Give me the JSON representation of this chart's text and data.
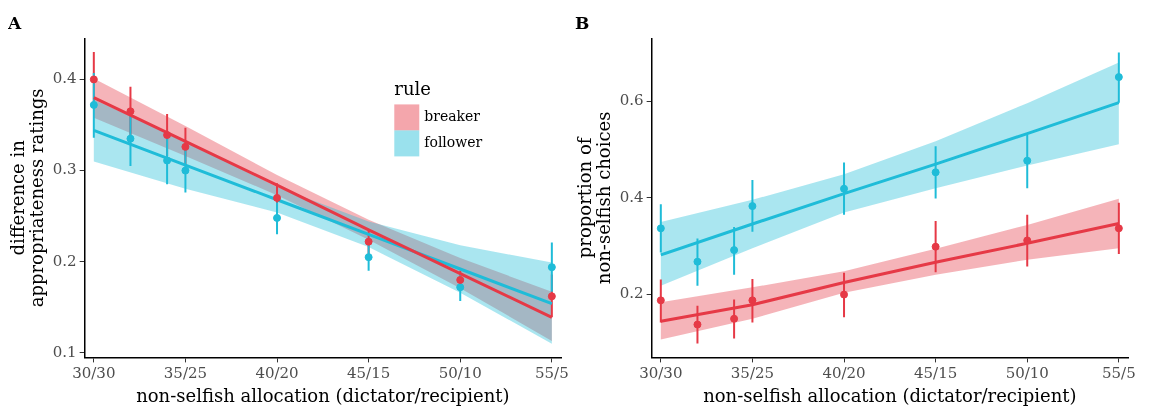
{
  "chart_data": [
    {
      "type": "line",
      "title": "A",
      "xlabel": "non-selfish allocation (dictator/recipient)",
      "ylabel": "difference in\nappropriateness ratings",
      "legend": "top right",
      "legend_title": "rule",
      "grid": false,
      "marker": "circle",
      "categories": [
        "30/30",
        null,
        null,
        null,
        null,
        "35/25",
        null,
        null,
        null,
        null,
        "40/20",
        null,
        null,
        null,
        null,
        "45/15",
        null,
        null,
        null,
        null,
        "50/10",
        null,
        null,
        null,
        null,
        "55/5"
      ],
      "ylim": [
        0.095,
        0.445
      ],
      "yticks": [
        0.1,
        0.2,
        0.3,
        0.4
      ],
      "series": [
        {
          "name": "breaker",
          "marker": "none",
          "color": "#e63946",
          "values": [
            0.38,
            null,
            null,
            null,
            null,
            0.332,
            null,
            null,
            null,
            null,
            0.284,
            null,
            null,
            null,
            null,
            0.235,
            null,
            null,
            null,
            null,
            0.187,
            null,
            null,
            null,
            null,
            0.139
          ],
          "lower": [
            0.358,
            null,
            null,
            null,
            null,
            0.316,
            null,
            null,
            null,
            null,
            0.273,
            null,
            null,
            null,
            null,
            0.224,
            null,
            null,
            null,
            null,
            0.171,
            null,
            null,
            null,
            null,
            0.113
          ],
          "upper": [
            0.401,
            null,
            null,
            null,
            null,
            0.349,
            null,
            null,
            null,
            null,
            0.295,
            null,
            null,
            null,
            null,
            0.246,
            null,
            null,
            null,
            null,
            0.204,
            null,
            null,
            null,
            null,
            0.167
          ]
        },
        {
          "name": "follower",
          "marker": "none",
          "color": "#1fbcd8",
          "values": [
            0.344,
            null,
            null,
            null,
            null,
            0.306,
            null,
            null,
            null,
            null,
            0.268,
            null,
            null,
            null,
            null,
            0.23,
            null,
            null,
            null,
            null,
            0.192,
            null,
            null,
            null,
            null,
            0.154
          ],
          "lower": [
            0.31,
            null,
            null,
            null,
            null,
            0.28,
            null,
            null,
            null,
            null,
            0.254,
            null,
            null,
            null,
            null,
            0.216,
            null,
            null,
            null,
            null,
            0.166,
            null,
            null,
            null,
            null,
            0.11
          ],
          "upper": [
            0.378,
            null,
            null,
            null,
            null,
            0.332,
            null,
            null,
            null,
            null,
            0.282,
            null,
            null,
            null,
            null,
            0.244,
            null,
            null,
            null,
            null,
            0.218,
            null,
            null,
            null,
            null,
            0.199
          ]
        },
        {
          "type": "scatter",
          "color": "#e63946",
          "values": [
            0.4,
            null,
            0.365,
            null,
            0.339,
            0.326,
            null,
            null,
            null,
            null,
            0.27,
            null,
            null,
            null,
            null,
            0.222,
            null,
            null,
            null,
            null,
            0.18,
            null,
            null,
            null,
            null,
            0.162
          ],
          "errors": [
            [
              0.37,
              0.43
            ],
            null,
            [
              0.338,
              0.392
            ],
            null,
            [
              0.316,
              0.362
            ],
            [
              0.305,
              0.347
            ],
            null,
            null,
            null,
            null,
            [
              0.255,
              0.286
            ],
            null,
            null,
            null,
            null,
            [
              0.208,
              0.236
            ],
            null,
            null,
            null,
            null,
            [
              0.17,
              0.19
            ],
            null,
            null,
            null,
            null,
            [
              0.139,
              0.186
            ]
          ]
        },
        {
          "type": "scatter",
          "color": "#1fbcd8",
          "values": [
            0.372,
            null,
            0.335,
            null,
            0.311,
            0.3,
            null,
            null,
            null,
            null,
            0.248,
            null,
            null,
            null,
            null,
            0.205,
            null,
            null,
            null,
            null,
            0.172,
            null,
            null,
            null,
            null,
            0.194
          ],
          "errors": [
            [
              0.336,
              0.407
            ],
            null,
            [
              0.305,
              0.365
            ],
            null,
            [
              0.285,
              0.337
            ],
            [
              0.276,
              0.323
            ],
            null,
            null,
            null,
            null,
            [
              0.23,
              0.265
            ],
            null,
            null,
            null,
            null,
            [
              0.19,
              0.22
            ],
            null,
            null,
            null,
            null,
            [
              0.157,
              0.187
            ],
            null,
            null,
            null,
            null,
            [
              0.167,
              0.221
            ]
          ]
        }
      ]
    },
    {
      "type": "line",
      "title": "B",
      "xlabel": "non-selfish allocation (dictator/recipient)",
      "ylabel": "proportion of\nnon-selfish choices",
      "grid": false,
      "marker": "circle",
      "categories": [
        "30/30",
        null,
        null,
        null,
        null,
        "35/25",
        null,
        null,
        null,
        null,
        "40/20",
        null,
        null,
        null,
        null,
        "45/15",
        null,
        null,
        null,
        null,
        "50/10",
        null,
        null,
        null,
        null,
        "55/5"
      ],
      "ylim": [
        0.07,
        0.73
      ],
      "yticks": [
        0.2,
        0.4,
        0.6
      ],
      "series": [
        {
          "marker": "none",
          "color": "#e63946",
          "values": [
            0.145,
            null,
            null,
            null,
            null,
            0.179,
            null,
            null,
            null,
            null,
            0.225,
            null,
            null,
            null,
            null,
            0.267,
            null,
            null,
            null,
            null,
            0.306,
            null,
            null,
            null,
            null,
            0.347
          ],
          "lower": [
            0.107,
            null,
            null,
            null,
            null,
            0.15,
            null,
            null,
            null,
            null,
            0.204,
            null,
            null,
            null,
            null,
            0.241,
            null,
            null,
            null,
            null,
            0.272,
            null,
            null,
            null,
            null,
            0.296
          ],
          "upper": [
            0.184,
            null,
            null,
            null,
            null,
            0.215,
            null,
            null,
            null,
            null,
            0.248,
            null,
            null,
            null,
            null,
            0.295,
            null,
            null,
            null,
            null,
            0.344,
            null,
            null,
            null,
            null,
            0.398
          ]
        },
        {
          "marker": "none",
          "color": "#1fbcd8",
          "values": [
            0.282,
            null,
            null,
            null,
            null,
            0.346,
            null,
            null,
            null,
            null,
            0.409,
            null,
            null,
            null,
            null,
            0.47,
            null,
            null,
            null,
            null,
            0.533,
            null,
            null,
            null,
            null,
            0.597
          ],
          "lower": [
            0.218,
            null,
            null,
            null,
            null,
            0.296,
            null,
            null,
            null,
            null,
            0.37,
            null,
            null,
            null,
            null,
            0.42,
            null,
            null,
            null,
            null,
            0.467,
            null,
            null,
            null,
            null,
            0.511
          ],
          "upper": [
            0.35,
            null,
            null,
            null,
            null,
            0.396,
            null,
            null,
            null,
            null,
            0.449,
            null,
            null,
            null,
            null,
            0.517,
            null,
            null,
            null,
            null,
            0.596,
            null,
            null,
            null,
            null,
            0.68
          ]
        },
        {
          "type": "scatter",
          "color": "#e63946",
          "values": [
            0.188,
            null,
            0.138,
            null,
            0.15,
            0.188,
            null,
            null,
            null,
            null,
            0.2,
            null,
            null,
            null,
            null,
            0.299,
            null,
            null,
            null,
            null,
            0.312,
            null,
            null,
            null,
            null,
            0.337
          ],
          "errors": [
            [
              0.142,
              0.231
            ],
            null,
            [
              0.099,
              0.177
            ],
            null,
            [
              0.109,
              0.19
            ],
            [
              0.142,
              0.232
            ],
            null,
            null,
            null,
            null,
            [
              0.153,
              0.245
            ],
            null,
            null,
            null,
            null,
            [
              0.246,
              0.352
            ],
            null,
            null,
            null,
            null,
            [
              0.258,
              0.365
            ],
            null,
            null,
            null,
            null,
            [
              0.284,
              0.39
            ]
          ]
        },
        {
          "type": "scatter",
          "color": "#1fbcd8",
          "values": [
            0.337,
            null,
            0.268,
            null,
            0.292,
            0.383,
            null,
            null,
            null,
            null,
            0.419,
            null,
            null,
            null,
            null,
            0.453,
            null,
            null,
            null,
            null,
            0.477,
            null,
            null,
            null,
            null,
            0.65
          ],
          "errors": [
            [
              0.287,
              0.387
            ],
            null,
            [
              0.218,
              0.316
            ],
            null,
            [
              0.241,
              0.34
            ],
            [
              0.33,
              0.437
            ],
            null,
            null,
            null,
            null,
            [
              0.365,
              0.473
            ],
            null,
            null,
            null,
            null,
            [
              0.399,
              0.507
            ],
            null,
            null,
            null,
            null,
            [
              0.42,
              0.53
            ],
            null,
            null,
            null,
            null,
            [
              0.597,
              0.701
            ]
          ]
        }
      ]
    }
  ]
}
